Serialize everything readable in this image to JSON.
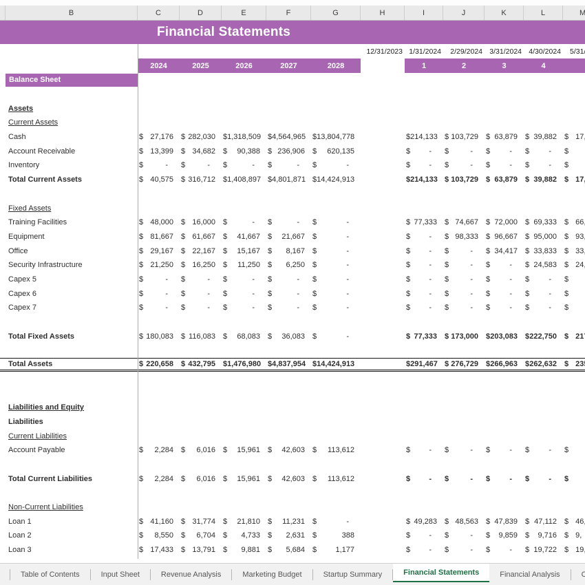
{
  "sheet": {
    "title": "Financial Statements",
    "section_label": "Balance Sheet",
    "column_letters": [
      "B",
      "C",
      "D",
      "E",
      "F",
      "G",
      "H",
      "I",
      "J",
      "K",
      "L",
      "M"
    ],
    "dates": [
      "12/31/2023",
      "1/31/2024",
      "2/29/2024",
      "3/31/2024",
      "4/30/2024",
      "5/31/"
    ],
    "year_headers": [
      "2024",
      "2025",
      "2026",
      "2027",
      "2028"
    ],
    "period_headers": [
      "1",
      "2",
      "3",
      "4",
      ""
    ],
    "currency_symbol": "$"
  },
  "rows": [
    {
      "t": "section",
      "text": "Balance Sheet"
    },
    {
      "t": "blank"
    },
    {
      "t": "label",
      "text": "Assets",
      "b": 1,
      "u": 1
    },
    {
      "t": "label",
      "text": "Current Assets",
      "u": 1
    },
    {
      "t": "data",
      "label": "Cash",
      "y": [
        "27,176",
        "282,030",
        "1,318,509",
        "4,564,965",
        "13,804,778"
      ],
      "m": [
        "214,133",
        "103,729",
        "63,879",
        "39,882",
        "17,"
      ]
    },
    {
      "t": "data",
      "label": "Account Receivable",
      "y": [
        "13,399",
        "34,682",
        "90,388",
        "236,906",
        "620,135"
      ],
      "m": [
        "-",
        "-",
        "-",
        "-",
        ""
      ]
    },
    {
      "t": "data",
      "label": "Inventory",
      "y": [
        "-",
        "-",
        "-",
        "-",
        "-"
      ],
      "m": [
        "-",
        "-",
        "-",
        "-",
        ""
      ]
    },
    {
      "t": "data",
      "label": "Total Current Assets",
      "b": 1,
      "bm": 1,
      "y": [
        "40,575",
        "316,712",
        "1,408,897",
        "4,801,871",
        "14,424,913"
      ],
      "m": [
        "214,133",
        "103,729",
        "63,879",
        "39,882",
        "17,"
      ]
    },
    {
      "t": "blank"
    },
    {
      "t": "label",
      "text": "Fixed Assets",
      "u": 1
    },
    {
      "t": "data",
      "label": "Training Facilities",
      "y": [
        "48,000",
        "16,000",
        "-",
        "-",
        "-"
      ],
      "m": [
        "77,333",
        "74,667",
        "72,000",
        "69,333",
        "66,"
      ]
    },
    {
      "t": "data",
      "label": "Equipment",
      "y": [
        "81,667",
        "61,667",
        "41,667",
        "21,667",
        "-"
      ],
      "m": [
        "-",
        "98,333",
        "96,667",
        "95,000",
        "93,"
      ]
    },
    {
      "t": "data",
      "label": "Office",
      "y": [
        "29,167",
        "22,167",
        "15,167",
        "8,167",
        "-"
      ],
      "m": [
        "-",
        "-",
        "34,417",
        "33,833",
        "33,"
      ]
    },
    {
      "t": "data",
      "label": "Security Infrastructure",
      "y": [
        "21,250",
        "16,250",
        "11,250",
        "6,250",
        "-"
      ],
      "m": [
        "-",
        "-",
        "-",
        "24,583",
        "24,"
      ]
    },
    {
      "t": "data",
      "label": "Capex 5",
      "y": [
        "-",
        "-",
        "-",
        "-",
        "-"
      ],
      "m": [
        "-",
        "-",
        "-",
        "-",
        ""
      ]
    },
    {
      "t": "data",
      "label": "Capex 6",
      "y": [
        "-",
        "-",
        "-",
        "-",
        "-"
      ],
      "m": [
        "-",
        "-",
        "-",
        "-",
        ""
      ]
    },
    {
      "t": "data",
      "label": "Capex 7",
      "y": [
        "-",
        "-",
        "-",
        "-",
        "-"
      ],
      "m": [
        "-",
        "-",
        "-",
        "-",
        ""
      ]
    },
    {
      "t": "blank"
    },
    {
      "t": "data",
      "label": "Total Fixed Assets",
      "b": 1,
      "bm": 1,
      "y": [
        "180,083",
        "116,083",
        "68,083",
        "36,083",
        "-"
      ],
      "m": [
        "77,333",
        "173,000",
        "203,083",
        "222,750",
        "217,"
      ]
    },
    {
      "t": "blank"
    },
    {
      "t": "data",
      "label": "Total Assets",
      "b": 1,
      "by": 1,
      "bm": 1,
      "rule": 1,
      "y": [
        "220,658",
        "432,795",
        "1,476,980",
        "4,837,954",
        "14,424,913"
      ],
      "m": [
        "291,467",
        "276,729",
        "266,963",
        "262,632",
        "235,"
      ]
    },
    {
      "t": "blank"
    },
    {
      "t": "blank"
    },
    {
      "t": "label",
      "text": "Liabilities and Equity",
      "b": 1,
      "u": 1
    },
    {
      "t": "label",
      "text": "Liabilities",
      "b": 1
    },
    {
      "t": "label",
      "text": "Current Liabilities",
      "u": 1
    },
    {
      "t": "data",
      "label": "Account Payable",
      "y": [
        "2,284",
        "6,016",
        "15,961",
        "42,603",
        "113,612"
      ],
      "m": [
        "-",
        "-",
        "-",
        "-",
        ""
      ]
    },
    {
      "t": "blank"
    },
    {
      "t": "data",
      "label": "Total Current Liabilities",
      "b": 1,
      "bm": 1,
      "y": [
        "2,284",
        "6,016",
        "15,961",
        "42,603",
        "113,612"
      ],
      "m": [
        "-",
        "-",
        "-",
        "-",
        ""
      ]
    },
    {
      "t": "blank"
    },
    {
      "t": "label",
      "text": "Non-Current Liabilities",
      "u": 1
    },
    {
      "t": "data",
      "label": "Loan 1",
      "y": [
        "41,160",
        "31,774",
        "21,810",
        "11,231",
        "-"
      ],
      "m": [
        "49,283",
        "48,563",
        "47,839",
        "47,112",
        "46,"
      ]
    },
    {
      "t": "data",
      "label": "Loan 2",
      "y": [
        "8,550",
        "6,704",
        "4,733",
        "2,631",
        "388"
      ],
      "m": [
        "-",
        "-",
        "9,859",
        "9,716",
        "9,"
      ]
    },
    {
      "t": "data",
      "label": "Loan 3",
      "y": [
        "17,433",
        "13,791",
        "9,881",
        "5,684",
        "1,177"
      ],
      "m": [
        "-",
        "-",
        "-",
        "19,722",
        "19,"
      ]
    }
  ],
  "tabs": {
    "items": [
      "Table of Contents",
      "Input Sheet",
      "Revenue Analysis",
      "Marketing Budget",
      "Startup Summary",
      "Financial Statements",
      "Financial Analysis",
      "CAC - CLV"
    ],
    "active": "Financial Statements"
  },
  "colors": {
    "accent_purple": "#a765b2",
    "active_tab_green": "#1e7145",
    "header_gray": "#e9e9e9"
  }
}
